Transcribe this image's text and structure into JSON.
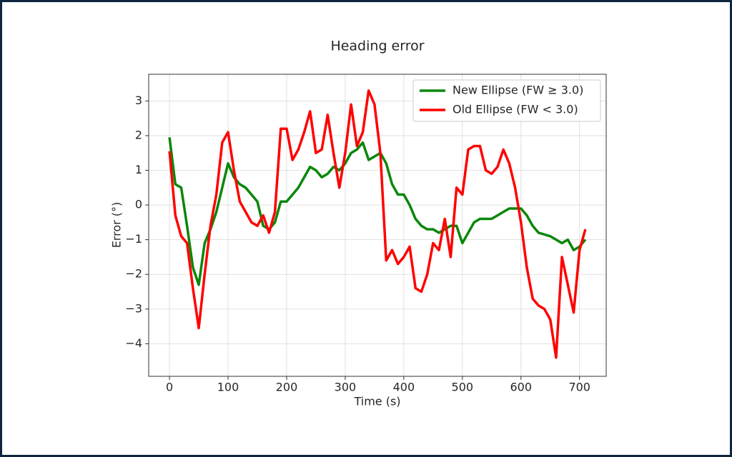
{
  "chart_data": {
    "type": "line",
    "title": "Heading error",
    "x_label": "Time (s)",
    "y_label": "Error (°)",
    "x": [
      0,
      10,
      20,
      30,
      40,
      50,
      60,
      70,
      80,
      90,
      100,
      110,
      120,
      130,
      140,
      150,
      160,
      170,
      180,
      190,
      200,
      210,
      220,
      230,
      240,
      250,
      260,
      270,
      280,
      290,
      300,
      310,
      320,
      330,
      340,
      350,
      360,
      370,
      380,
      390,
      400,
      410,
      420,
      430,
      440,
      450,
      460,
      470,
      480,
      490,
      500,
      510,
      520,
      530,
      540,
      550,
      560,
      570,
      580,
      590,
      600,
      610,
      620,
      630,
      640,
      650,
      660,
      670,
      680,
      690,
      700,
      710
    ],
    "series": [
      {
        "name": "New Ellipse (FW ≥ 3.0)",
        "color": "#0a870a",
        "values": [
          1.95,
          0.6,
          0.5,
          -0.6,
          -1.8,
          -2.3,
          -1.1,
          -0.7,
          -0.2,
          0.5,
          1.2,
          0.8,
          0.6,
          0.5,
          0.3,
          0.1,
          -0.6,
          -0.7,
          -0.5,
          0.1,
          0.1,
          0.3,
          0.5,
          0.8,
          1.1,
          1.0,
          0.8,
          0.9,
          1.1,
          1.0,
          1.2,
          1.5,
          1.6,
          1.8,
          1.3,
          1.4,
          1.5,
          1.2,
          0.6,
          0.3,
          0.3,
          0.0,
          -0.4,
          -0.6,
          -0.7,
          -0.7,
          -0.8,
          -0.7,
          -0.6,
          -0.6,
          -1.1,
          -0.8,
          -0.5,
          -0.4,
          -0.4,
          -0.4,
          -0.3,
          -0.2,
          -0.1,
          -0.1,
          -0.1,
          -0.3,
          -0.6,
          -0.8,
          -0.85,
          -0.9,
          -1.0,
          -1.1,
          -1.0,
          -1.3,
          -1.2,
          -1.0
        ]
      },
      {
        "name": "Old Ellipse (FW < 3.0)",
        "color": "#ff0000",
        "values": [
          1.55,
          -0.3,
          -0.9,
          -1.1,
          -2.4,
          -3.55,
          -2.0,
          -0.6,
          0.3,
          1.8,
          2.1,
          1.0,
          0.1,
          -0.2,
          -0.5,
          -0.6,
          -0.3,
          -0.8,
          -0.2,
          2.2,
          2.2,
          1.3,
          1.6,
          2.1,
          2.7,
          1.5,
          1.6,
          2.6,
          1.5,
          0.5,
          1.5,
          2.9,
          1.7,
          2.1,
          3.3,
          2.9,
          1.5,
          -1.6,
          -1.3,
          -1.7,
          -1.5,
          -1.2,
          -2.4,
          -2.5,
          -2.0,
          -1.1,
          -1.3,
          -0.4,
          -1.5,
          0.5,
          0.3,
          1.6,
          1.7,
          1.7,
          1.0,
          0.9,
          1.1,
          1.6,
          1.2,
          0.5,
          -0.5,
          -1.8,
          -2.7,
          -2.9,
          -3.0,
          -3.3,
          -4.4,
          -1.5,
          -2.3,
          -3.1,
          -1.3,
          -0.7
        ]
      }
    ],
    "xlim": [
      -35.5,
      745.5
    ],
    "ylim": [
      -4.94,
      3.77
    ],
    "xticks": [
      0,
      100,
      200,
      300,
      400,
      500,
      600,
      700
    ],
    "yticks": [
      {
        "value": -4,
        "label": "−4"
      },
      {
        "value": -3,
        "label": "−3"
      },
      {
        "value": -2,
        "label": "−2"
      },
      {
        "value": -1,
        "label": "−1"
      },
      0,
      1,
      2,
      3
    ],
    "grid": true,
    "legend": "upper right"
  }
}
